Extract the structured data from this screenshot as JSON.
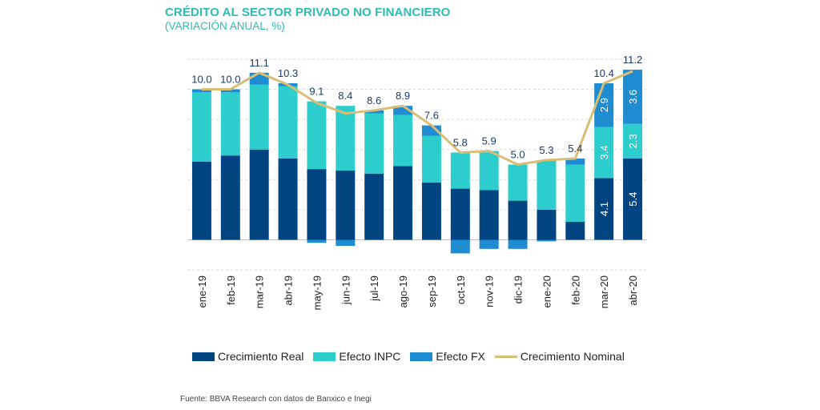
{
  "title": "CRÉDITO AL SECTOR PRIVADO NO FINANCIERO",
  "subtitle": "(VARIACIÓN ANUAL, %)",
  "source": "Fuente: BBVA Research con datos de Banxico e Inegi",
  "colors": {
    "real": "#004481",
    "inpc": "#2dcccd",
    "fx": "#1f8bd1",
    "nominal": "#d8be75",
    "grid": "#d9d9d9",
    "label": "#1a3a6b"
  },
  "chart_data": {
    "type": "bar",
    "stacked": true,
    "categories": [
      "ene-19",
      "feb-19",
      "mar-19",
      "abr-19",
      "may-19",
      "jun-19",
      "jul-19",
      "ago-19",
      "sep-19",
      "oct-19",
      "nov-19",
      "dic-19",
      "ene-20",
      "feb-20",
      "mar-20",
      "abr-20"
    ],
    "series": [
      {
        "name": "Crecimiento Real",
        "type": "bar",
        "values": [
          5.2,
          5.6,
          6.0,
          5.4,
          4.7,
          4.6,
          4.4,
          4.9,
          3.8,
          3.4,
          3.3,
          2.6,
          2.0,
          1.2,
          4.1,
          5.4
        ]
      },
      {
        "name": "Efecto INPC",
        "type": "bar",
        "values": [
          4.6,
          4.2,
          4.3,
          4.8,
          4.5,
          4.3,
          4.0,
          3.4,
          3.1,
          2.4,
          2.6,
          2.4,
          3.3,
          3.8,
          3.4,
          2.3
        ]
      },
      {
        "name": "Efecto FX",
        "type": "bar",
        "values": [
          0.2,
          0.2,
          0.8,
          0.2,
          -0.2,
          -0.4,
          0.2,
          0.6,
          0.7,
          -0.9,
          -0.6,
          -0.6,
          -0.1,
          0.4,
          2.9,
          3.6
        ]
      },
      {
        "name": "Crecimiento Nominal",
        "type": "line",
        "values": [
          10.0,
          10.0,
          11.1,
          10.3,
          9.1,
          8.4,
          8.6,
          8.9,
          7.6,
          5.8,
          5.9,
          5.0,
          5.3,
          5.4,
          10.4,
          11.2
        ]
      }
    ],
    "bar_value_labels": {
      "mar-20": {
        "Crecimiento Real": "4.1",
        "Efecto INPC": "3.4",
        "Efecto FX": "2.9"
      },
      "abr-20": {
        "Crecimiento Real": "5.4",
        "Efecto INPC": "2.3",
        "Efecto FX": "3.6"
      }
    },
    "ylim": [
      -2,
      12
    ],
    "grid": true,
    "legend_position": "bottom",
    "legend": [
      "Crecimiento Real",
      "Efecto INPC",
      "Efecto FX",
      "Crecimiento Nominal"
    ]
  }
}
